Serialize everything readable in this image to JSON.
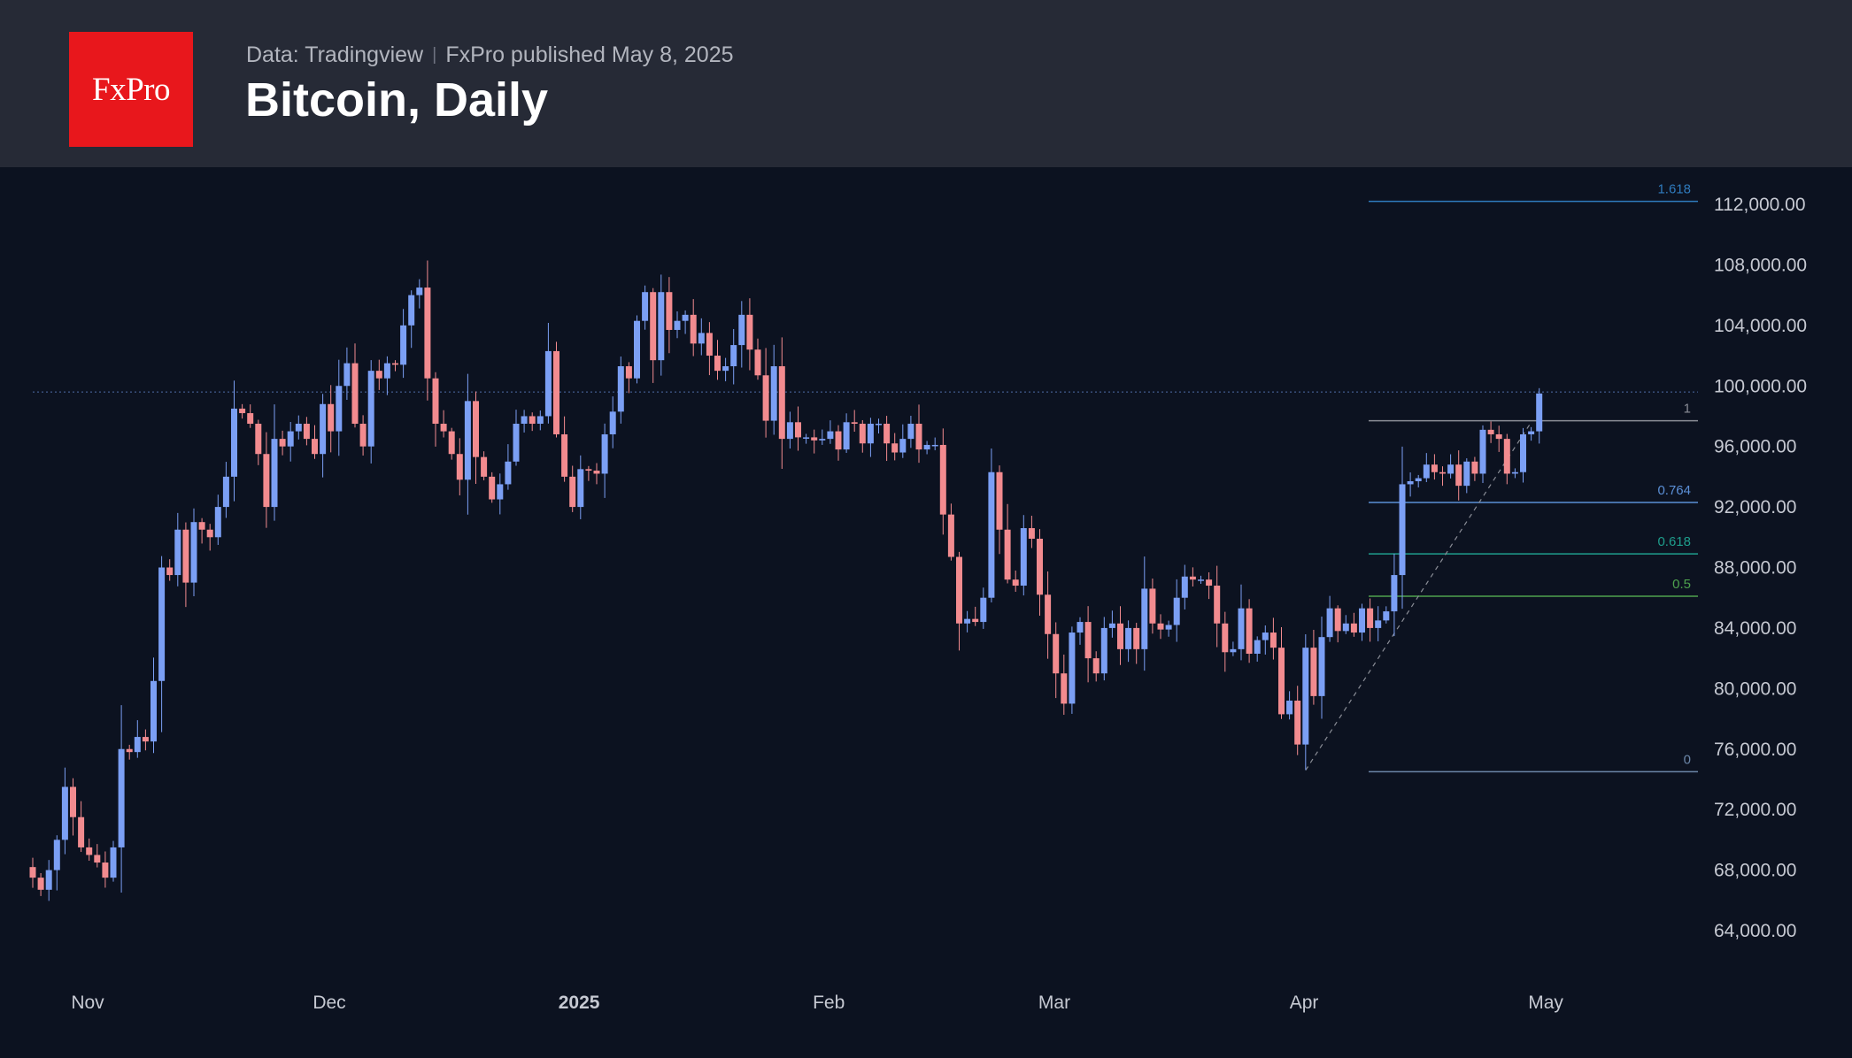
{
  "header": {
    "logo_text": "FxPro",
    "source": "Data: Tradingview",
    "published": "FxPro published May 8, 2025",
    "title": "Bitcoin, Daily"
  },
  "colors": {
    "header_bg": "#262a36",
    "chart_bg": "#0c1220",
    "logo_bg": "#e8171c",
    "bull": "#7b9ff4",
    "bear": "#f28b8f"
  },
  "chart_data": {
    "type": "candlestick",
    "title": "Bitcoin, Daily",
    "x_labels": [
      "Nov",
      "Dec",
      "2025",
      "Feb",
      "Mar",
      "Apr",
      "May"
    ],
    "x_label_positions": [
      0,
      30,
      61,
      92,
      120,
      151,
      181
    ],
    "y_ticks": [
      "64,000.00",
      "68,000.00",
      "72,000.00",
      "76,000.00",
      "80,000.00",
      "84,000.00",
      "88,000.00",
      "92,000.00",
      "96,000.00",
      "100,000.00",
      "104,000.00",
      "108,000.00",
      "112,000.00"
    ],
    "y_tick_values": [
      64000,
      68000,
      72000,
      76000,
      80000,
      84000,
      88000,
      92000,
      96000,
      100000,
      104000,
      108000,
      112000
    ],
    "ylim": [
      61000,
      114000
    ],
    "current_price_line": 99600,
    "first_date": "2024-10-31",
    "closes": [
      67500,
      66700,
      68000,
      70000,
      73500,
      71500,
      69500,
      69000,
      68500,
      67500,
      69500,
      76000,
      75800,
      76800,
      76500,
      80500,
      88000,
      87500,
      90500,
      87000,
      91000,
      90500,
      90000,
      92000,
      94000,
      98500,
      98200,
      97500,
      95500,
      92000,
      96500,
      96000,
      97000,
      97500,
      96500,
      95500,
      98800,
      97000,
      100000,
      101500,
      97500,
      96000,
      101000,
      100500,
      101500,
      101400,
      104000,
      106000,
      106500,
      100500,
      97500,
      97000,
      95500,
      93800,
      99000,
      95300,
      94000,
      92500,
      93500,
      95000,
      97500,
      98000,
      97500,
      98000,
      102300,
      96800,
      94000,
      92000,
      94500,
      94400,
      94200,
      96800,
      98300,
      101300,
      100500,
      104300,
      106200,
      101700,
      106200,
      103700,
      104300,
      104700,
      102800,
      103500,
      102000,
      101000,
      101300,
      102700,
      104700,
      102400,
      100700,
      97700,
      101300,
      96500,
      97600,
      96600,
      96600,
      96400,
      96500,
      97000,
      95800,
      97600,
      97500,
      96200,
      97500,
      97500,
      96200,
      95600,
      96500,
      97500,
      95800,
      96100,
      96100,
      91500,
      88700,
      84300,
      84600,
      84400,
      86000,
      94300,
      90500,
      87200,
      86800,
      90600,
      89900,
      86200,
      83600,
      81000,
      79000,
      83700,
      84400,
      82000,
      81000,
      84000,
      84300,
      82600,
      84000,
      82600,
      86600,
      84300,
      83900,
      84200,
      86000,
      87400,
      87200,
      87200,
      86800,
      84300,
      82400,
      82600,
      85300,
      82300,
      83200,
      83700,
      82700,
      78300,
      79200,
      76300,
      82700,
      79500,
      83400,
      85300,
      83800,
      84300,
      83700,
      85300,
      84000,
      84500,
      85100,
      87500,
      93500,
      93700,
      93900,
      94800,
      94300,
      94200,
      94800,
      93400,
      95000,
      94200,
      97100,
      96800,
      96500,
      94200,
      94300,
      96800,
      97000,
      99500
    ],
    "fib_levels": [
      {
        "label": "1.618",
        "value": 112200,
        "color": "#2f7bbd"
      },
      {
        "label": "1",
        "value": 97700,
        "color": "#8a8d96"
      },
      {
        "label": "0.764",
        "value": 92300,
        "color": "#5b8fd6"
      },
      {
        "label": "0.618",
        "value": 88900,
        "color": "#1e9e8c"
      },
      {
        "label": "0.5",
        "value": 86100,
        "color": "#4ea24e"
      },
      {
        "label": "0",
        "value": 74500,
        "color": "#6b86a8"
      }
    ],
    "fib_trend_line": {
      "from_index": 158,
      "from_value": 74600,
      "to_index": 186,
      "to_value": 97600
    }
  }
}
